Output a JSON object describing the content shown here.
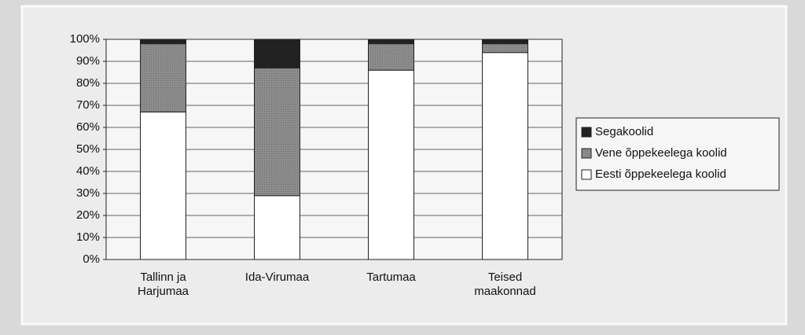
{
  "chart_data": {
    "type": "stacked_bar",
    "categories": [
      "Tallinn ja Harjumaa",
      "Ida-Virumaa",
      "Tartumaa",
      "Teised maakonnad"
    ],
    "series": [
      {
        "name": "Segakoolid",
        "color": "#222222",
        "values": [
          2,
          13,
          2,
          2
        ]
      },
      {
        "name": "Vene õppekeelega koolid",
        "color": "#8c8c8c",
        "values": [
          31,
          58,
          12,
          4
        ]
      },
      {
        "name": "Eesti õppekeelega koolid",
        "color": "#ffffff",
        "values": [
          67,
          29,
          86,
          94
        ]
      }
    ],
    "ylim": [
      0,
      100
    ],
    "yticks": [
      {
        "value": 0,
        "label": "0%"
      },
      {
        "value": 10,
        "label": "10%"
      },
      {
        "value": 20,
        "label": "20%"
      },
      {
        "value": 30,
        "label": "30%"
      },
      {
        "value": 40,
        "label": "40%"
      },
      {
        "value": 50,
        "label": "50%"
      },
      {
        "value": 60,
        "label": "60%"
      },
      {
        "value": 70,
        "label": "70%"
      },
      {
        "value": 80,
        "label": "80%"
      },
      {
        "value": 90,
        "label": "90%"
      },
      {
        "value": 100,
        "label": "100%"
      }
    ],
    "grid": true,
    "legend": "right"
  }
}
